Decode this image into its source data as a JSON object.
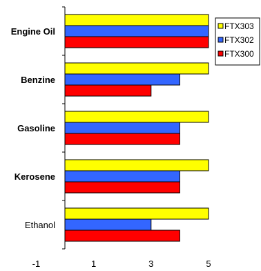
{
  "chart_data": {
    "type": "bar",
    "orientation": "horizontal",
    "categories": [
      "Engine Oil",
      "Benzine",
      "Gasoline",
      "Kerosene",
      "Ethanol"
    ],
    "category_bold": [
      true,
      true,
      true,
      true,
      false
    ],
    "series": [
      {
        "name": "FTX303",
        "color": "#ffff00",
        "values": [
          5,
          5,
          5,
          5,
          5
        ]
      },
      {
        "name": "FTX302",
        "color": "#3366ff",
        "values": [
          5,
          4,
          4,
          4,
          3
        ]
      },
      {
        "name": "FTX300",
        "color": "#ff0000",
        "values": [
          5,
          3,
          4,
          4,
          4
        ]
      }
    ],
    "xlim": [
      -1,
      5
    ],
    "xticks": [
      "-1",
      "1",
      "3",
      "5"
    ],
    "xtick_values": [
      -1,
      1,
      3,
      5
    ],
    "grid": false,
    "legend_position": "right"
  }
}
